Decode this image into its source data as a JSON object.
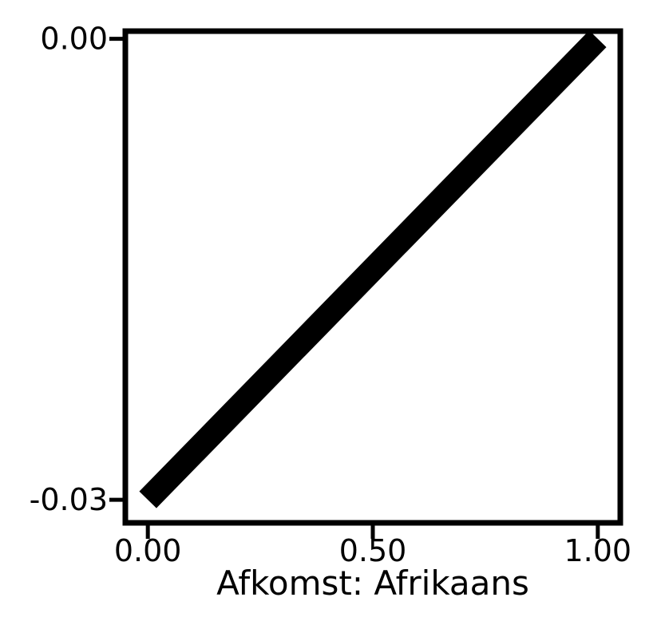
{
  "chart_data": {
    "type": "line",
    "title": "",
    "xlabel": "Afkomst: Afrikaans",
    "ylabel": "",
    "xlim": [
      -0.05,
      1.05
    ],
    "ylim": [
      -0.0315,
      0.0005
    ],
    "x_ticks": [
      {
        "value": 0.0,
        "label": "0.00"
      },
      {
        "value": 0.5,
        "label": "0.50"
      },
      {
        "value": 1.0,
        "label": "1.00"
      }
    ],
    "y_ticks": [
      {
        "value": 0.0,
        "label": "0.00"
      },
      {
        "value": -0.03,
        "label": "-0.03"
      }
    ],
    "grid": false,
    "series": [
      {
        "x": [
          0.0,
          1.0
        ],
        "y": [
          -0.03,
          0.0
        ],
        "color": "#000000"
      }
    ]
  }
}
